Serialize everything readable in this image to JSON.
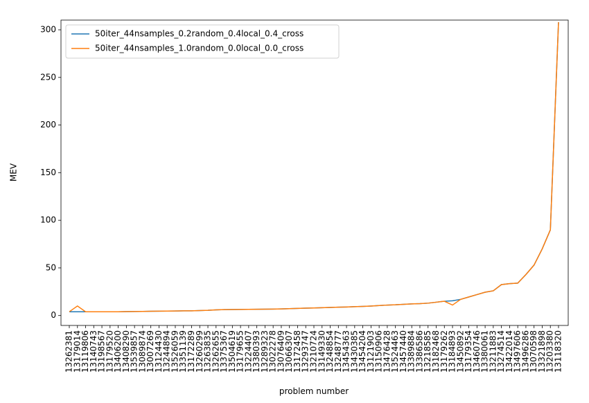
{
  "chart_data": {
    "type": "line",
    "xlabel": "problem number",
    "ylabel": "MEV",
    "categories": [
      "13262381",
      "13179014",
      "13119806",
      "13140743",
      "13198567",
      "13179520",
      "13406200",
      "13408290",
      "13539857",
      "13089874",
      "13007269",
      "13124430",
      "13244894",
      "13526059",
      "13351139",
      "13172289",
      "13260299",
      "13263835",
      "13262655",
      "13375367",
      "13504619",
      "13179655",
      "13224407",
      "13380393",
      "13289323",
      "13022278",
      "13076409",
      "13066307",
      "13172458",
      "13293747",
      "13210724",
      "13149330",
      "13248854",
      "13248777",
      "13454363",
      "13430385",
      "13454204",
      "13121903",
      "13150906",
      "13476428",
      "13524463",
      "13457440",
      "13389884",
      "13386586",
      "13218585",
      "13182468",
      "13179262",
      "13184893",
      "13450892",
      "13179354",
      "13460746",
      "13380061",
      "13211883",
      "13274514",
      "13422014",
      "13497606",
      "13496286",
      "13070598",
      "13321898",
      "13203380",
      "13118320"
    ],
    "series": [
      {
        "name": "50iter_44nsamples_0.2random_0.4local_0.4_cross",
        "color": "#1f77b4",
        "values": [
          4,
          4,
          4,
          4,
          4,
          4,
          4,
          4.1,
          4.2,
          4.3,
          4.5,
          4.6,
          4.7,
          4.8,
          5,
          5,
          5.2,
          5.5,
          6,
          6.2,
          6.3,
          6.4,
          6.5,
          6.6,
          6.7,
          6.8,
          7,
          7.2,
          7.5,
          7.8,
          8,
          8.2,
          8.5,
          8.8,
          9,
          9.3,
          9.6,
          10,
          10.5,
          11,
          11.3,
          11.8,
          12.2,
          12.5,
          13,
          14,
          15,
          15.5,
          17,
          19.5,
          22,
          24.5,
          26,
          32.5,
          33.5,
          34,
          43,
          53,
          70,
          90,
          308
        ]
      },
      {
        "name": "50iter_44nsamples_1.0random_0.0local_0.0_cross",
        "color": "#ff7f0e",
        "values": [
          4,
          10,
          4,
          4,
          4,
          4,
          4,
          4.1,
          4.2,
          4.3,
          4.5,
          4.6,
          4.7,
          4.8,
          5,
          5,
          5.2,
          5.5,
          6,
          6.2,
          6.3,
          6.4,
          6.5,
          6.6,
          6.7,
          6.8,
          7,
          7.2,
          7.5,
          7.8,
          8,
          8.2,
          8.5,
          8.8,
          9,
          9.3,
          9.6,
          10,
          10.5,
          11,
          11.3,
          11.8,
          12.2,
          12.5,
          13,
          14,
          15,
          11,
          17,
          19.5,
          22,
          24.5,
          26,
          32.5,
          33.5,
          34,
          43,
          53,
          70,
          90,
          308
        ]
      }
    ],
    "ylim": [
      -10.4,
      310.2
    ],
    "yticks": [
      0,
      50,
      100,
      150,
      200,
      250,
      300
    ],
    "legend": "upper left",
    "grid": false
  }
}
